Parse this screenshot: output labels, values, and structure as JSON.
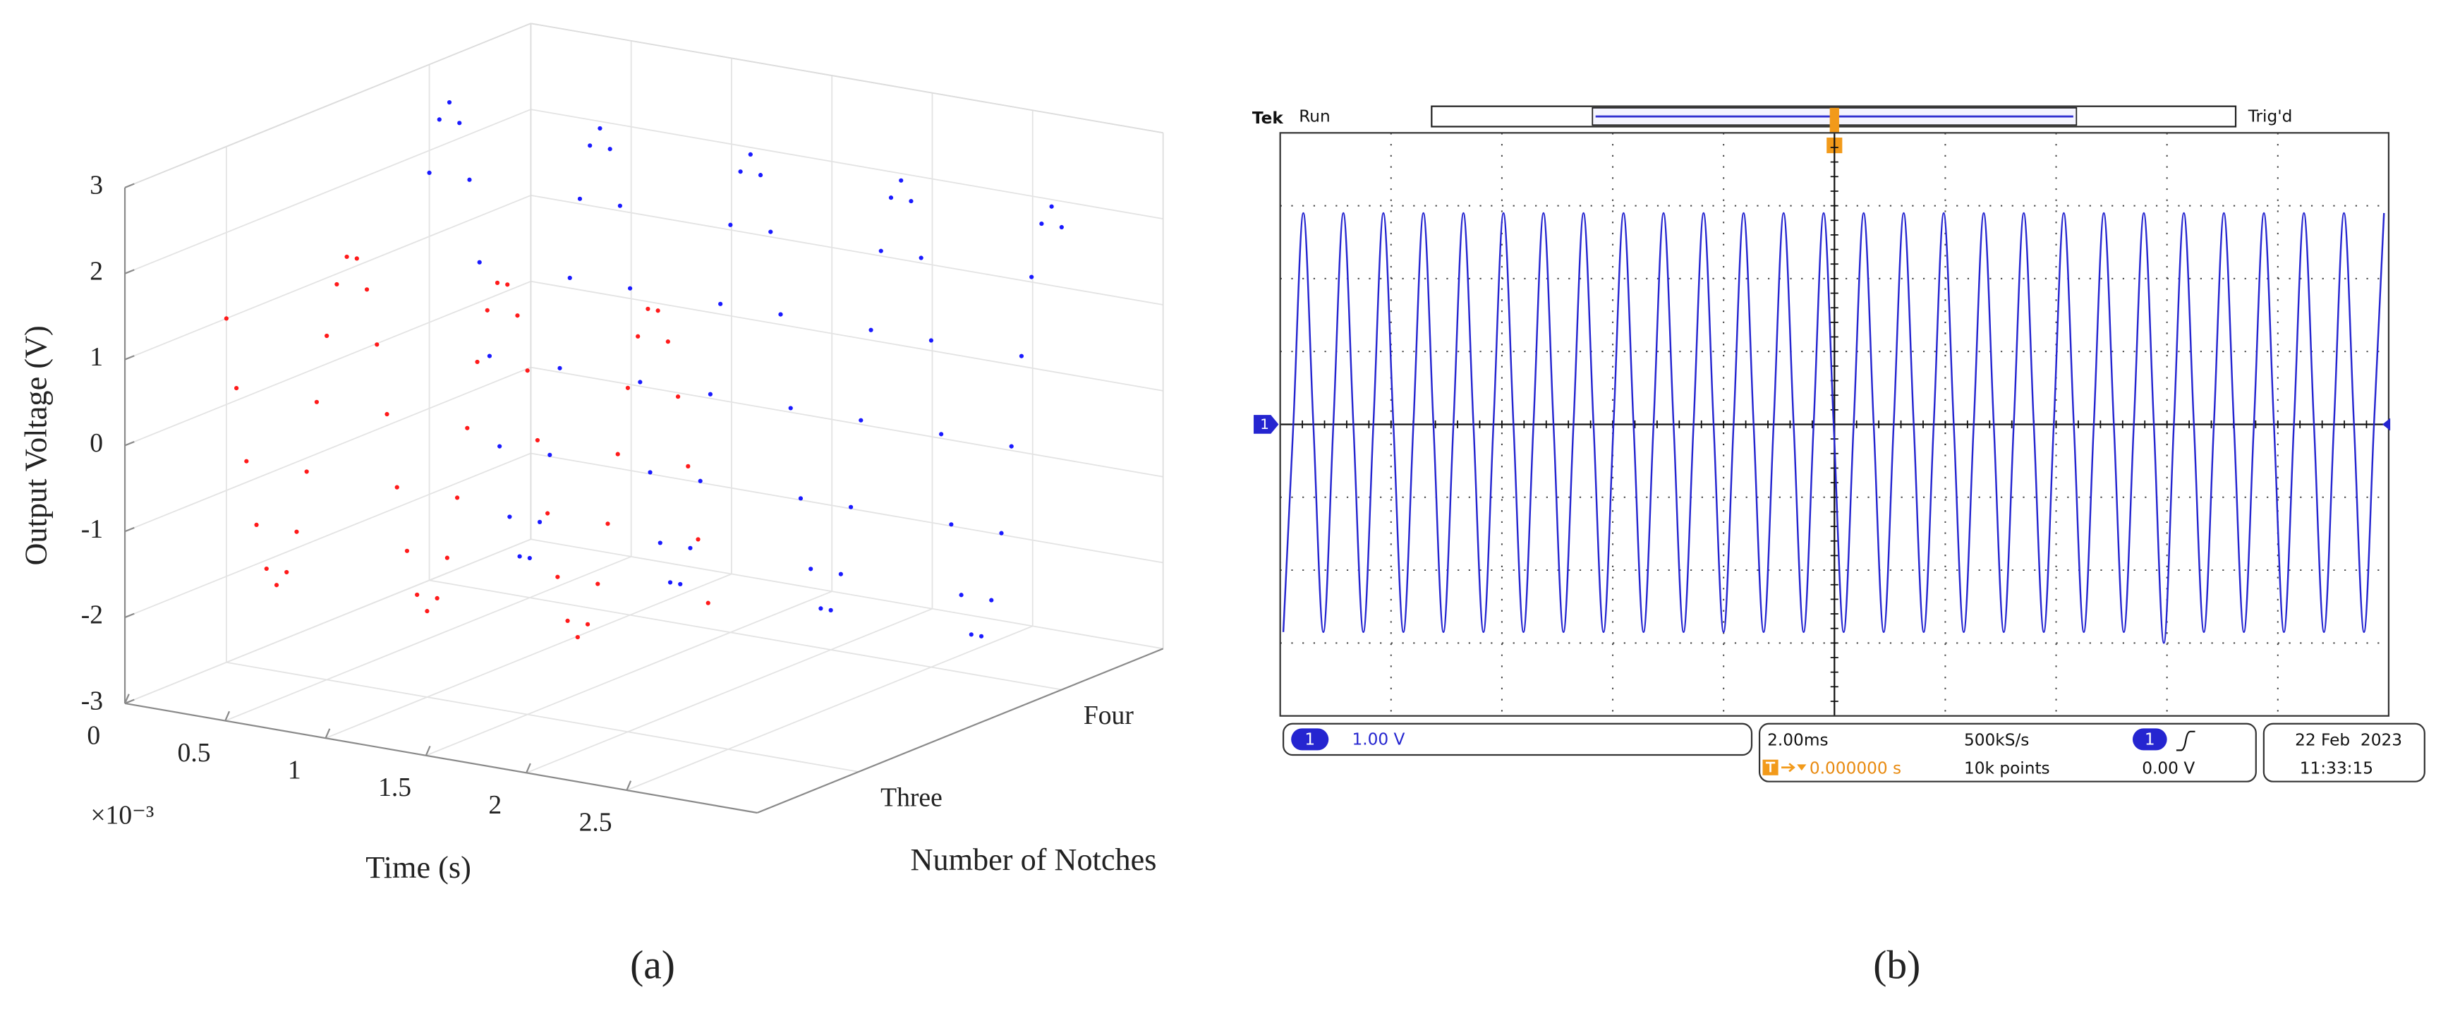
{
  "chart_data": [
    {
      "type": "scatter3d",
      "label": "(a)",
      "zlabel": "Output Voltage (V)",
      "xlabel": "Time (s)",
      "x_scale": "×10⁻³",
      "ylabel": "Number of Notches",
      "x": [
        0,
        0.05,
        0.1,
        0.15,
        0.2,
        0.25,
        0.3,
        0.35,
        0.4,
        0.45,
        0.5,
        0.55,
        0.6,
        0.65,
        0.7,
        0.75,
        0.8,
        0.85,
        0.9,
        0.95,
        1,
        1.05,
        1.1,
        1.15,
        1.2,
        1.25,
        1.3,
        1.35,
        1.4,
        1.45,
        1.5,
        1.55,
        1.6,
        1.65,
        1.7,
        1.75,
        1.8,
        1.85,
        1.9,
        1.95,
        2,
        2.05,
        2.1,
        2.15,
        2.2,
        2.25,
        2.3,
        2.35,
        2.4,
        2.45,
        2.5,
        2.55,
        2.6,
        2.65,
        2.7,
        2.75,
        2.8,
        2.85,
        2.9,
        2.95,
        3,
        3.05,
        3.1,
        3.15
      ],
      "xlim": [
        0,
        3.15
      ],
      "xticks": [
        0,
        0.5,
        1,
        1.5,
        2,
        2.5
      ],
      "categories": [
        "Three",
        "Four"
      ],
      "zlim": [
        -3,
        3
      ],
      "zticks": [
        -3,
        -2,
        -1,
        0,
        1,
        2,
        3
      ],
      "grid": true,
      "series": [
        {
          "color": "#ff1a1a",
          "values": [
            1.0,
            0.21,
            -0.62,
            -1.34,
            -1.83,
            -2,
            -1.83,
            -1.34,
            -0.62,
            0.21,
            1.0,
            1.62,
            1.96,
            1.96,
            1.62,
            1.0,
            0.21,
            -0.62,
            -1.34,
            -1.83,
            -2,
            -1.83,
            -1.34,
            -0.62,
            0.21,
            1.0,
            1.62,
            1.96,
            1.96,
            1.62,
            1.0,
            0.21,
            -0.62,
            -1.34,
            -1.83,
            -2,
            -1.83,
            -1.34,
            -0.62,
            0.21,
            1.0,
            1.62,
            1.96,
            1.96,
            1.62,
            1.0,
            0.21,
            -0.62,
            -1.34,
            null,
            null,
            null,
            null,
            null,
            null,
            null,
            null,
            null,
            null,
            null,
            null,
            null,
            null,
            null
          ]
        },
        {
          "color": "#1a1aff",
          "values": [
            1.74,
            2.38,
            2.6,
            2.38,
            1.74,
            0.8,
            -0.27,
            -1.3,
            -2.1,
            -2.54,
            -2.54,
            -2.1,
            -1.3,
            -0.27,
            0.8,
            1.74,
            2.38,
            2.6,
            2.38,
            1.74,
            0.8,
            -0.27,
            -1.3,
            -2.1,
            -2.54,
            -2.54,
            -2.1,
            -1.3,
            -0.27,
            0.8,
            1.74,
            2.38,
            2.6,
            2.38,
            1.74,
            0.8,
            -0.27,
            -1.3,
            -2.1,
            -2.54,
            -2.54,
            -2.1,
            -1.3,
            -0.27,
            0.8,
            1.74,
            2.38,
            2.6,
            2.38,
            1.74,
            0.8,
            -0.27,
            -1.3,
            -2.1,
            -2.54,
            -2.54,
            -2.1,
            -1.3,
            -0.27,
            0.8,
            1.74,
            2.38,
            2.6,
            2.38
          ]
        }
      ]
    },
    {
      "type": "line",
      "label": "(b)",
      "brand": "Tek",
      "state": "Run",
      "trigger_state": "Trig'd",
      "channel": "1",
      "scale": "1.00 V",
      "timebase": "2.00ms",
      "sample_rate": "500kS/s",
      "trigger_position": "0.000000 s",
      "record_length": "10k points",
      "trigger_level": "0.00 V",
      "date": "22 Feb  2023",
      "time": "11:33:15",
      "color": "#2525d0",
      "ylim": [
        -4,
        4
      ],
      "values": [
        -2.85,
        0,
        2.9,
        0,
        -2.85,
        0,
        2.9,
        0,
        -2.85,
        0,
        2.9,
        0,
        -2.85,
        0,
        2.9,
        0,
        -2.85,
        0,
        2.9,
        0,
        -2.85,
        0,
        2.9,
        0,
        -2.85,
        0,
        2.9,
        0,
        -2.85,
        0,
        2.9,
        0,
        -2.85,
        0,
        2.9,
        0,
        -2.85,
        0,
        2.9,
        0,
        -2.85,
        0,
        2.9,
        0,
        -2.85,
        0,
        2.9,
        0,
        -2.85,
        0,
        2.9,
        0,
        -2.85,
        0,
        2.9,
        0,
        -2.85,
        0,
        2.9,
        0,
        -2.85,
        0,
        2.9,
        0,
        -2.85,
        0,
        2.9,
        0,
        -2.85,
        0,
        2.9,
        0,
        -2.85,
        0,
        2.9,
        0,
        -2.85,
        0,
        2.9,
        0,
        -2.85,
        0,
        2.9,
        0,
        -2.85,
        0,
        2.9,
        0,
        -3.0,
        0,
        2.9,
        0,
        -2.85,
        0,
        2.9,
        0,
        -2.85,
        0,
        2.9,
        0,
        -2.85,
        0,
        2.9,
        0,
        -2.85,
        0,
        2.9,
        0,
        -2.85,
        0,
        2.9
      ]
    }
  ]
}
